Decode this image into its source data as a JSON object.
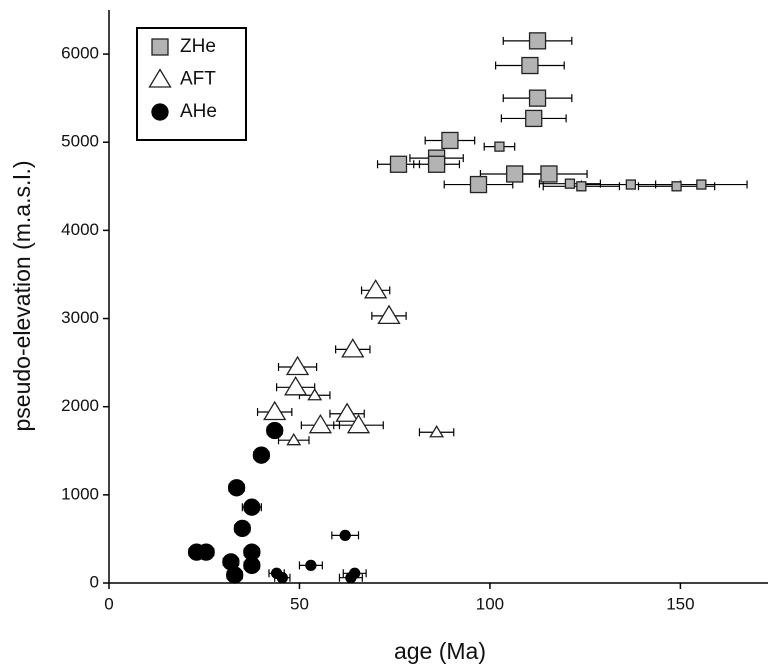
{
  "chart_data": {
    "type": "scatter",
    "x_label": "age (Ma)",
    "y_label": "pseudo-elevation (m.a.s.l.)",
    "xlim": [
      0,
      173
    ],
    "ylim": [
      0,
      6500
    ],
    "xticks": [
      0,
      50,
      100,
      150
    ],
    "yticks": [
      0,
      1000,
      2000,
      3000,
      4000,
      5000,
      6000
    ],
    "legend": "upper left",
    "series": [
      {
        "name": "ZHe",
        "marker": "square",
        "color": "#b3b3b3",
        "x": [
          112.5,
          110.5,
          112.5,
          111.5,
          89.5,
          102.5,
          86,
          86,
          76,
          106.5,
          115.5,
          97,
          121,
          124,
          137,
          149,
          155.5
        ],
        "values": [
          6150,
          5870,
          5500,
          5270,
          5020,
          4950,
          4820,
          4750,
          4750,
          4640,
          4640,
          4520,
          4530,
          4500,
          4520,
          4500,
          4520
        ],
        "xerr": [
          9,
          9,
          9,
          8.5,
          6.5,
          4,
          7,
          6,
          5.5,
          9,
          10,
          9,
          8,
          10,
          13,
          10,
          12
        ],
        "sizes": [
          "large",
          "large",
          "large",
          "large",
          "large",
          "small",
          "large",
          "large",
          "large",
          "large",
          "large",
          "large",
          "small",
          "small",
          "small",
          "small",
          "small"
        ]
      },
      {
        "name": "AFT",
        "marker": "triangle",
        "color": "#ffffff",
        "x": [
          70,
          73.5,
          64,
          49.5,
          49,
          54,
          43.5,
          62.5,
          55.5,
          65.5,
          48.5,
          86
        ],
        "values": [
          3320,
          3030,
          2650,
          2450,
          2220,
          2130,
          1940,
          1920,
          1790,
          1790,
          1620,
          1710
        ],
        "xerr": [
          3.7,
          4.5,
          4.5,
          5,
          5,
          4,
          4.5,
          4.5,
          5,
          6.5,
          4,
          4.5
        ],
        "sizes": [
          "large",
          "large",
          "large",
          "large",
          "large",
          "small",
          "large",
          "large",
          "large",
          "large",
          "small",
          "small"
        ]
      },
      {
        "name": "AHe",
        "marker": "circle",
        "color": "#000000",
        "x": [
          43.5,
          40,
          33.5,
          37.5,
          35,
          62,
          23,
          25.5,
          37.5,
          32,
          37.5,
          53,
          33,
          44,
          45.5,
          64.5,
          63.5
        ],
        "values": [
          1730,
          1450,
          1080,
          860,
          620,
          540,
          350,
          350,
          350,
          240,
          200,
          200,
          90,
          110,
          60,
          110,
          60
        ],
        "xerr": [
          2,
          2,
          2,
          2.5,
          2,
          3.5,
          2,
          2,
          2,
          2,
          2,
          3,
          2,
          2,
          2,
          3,
          3
        ],
        "sizes": [
          "large",
          "large",
          "large",
          "large",
          "large",
          "small",
          "large",
          "large",
          "large",
          "large",
          "large",
          "small",
          "large",
          "small",
          "small",
          "small",
          "small"
        ]
      }
    ]
  }
}
